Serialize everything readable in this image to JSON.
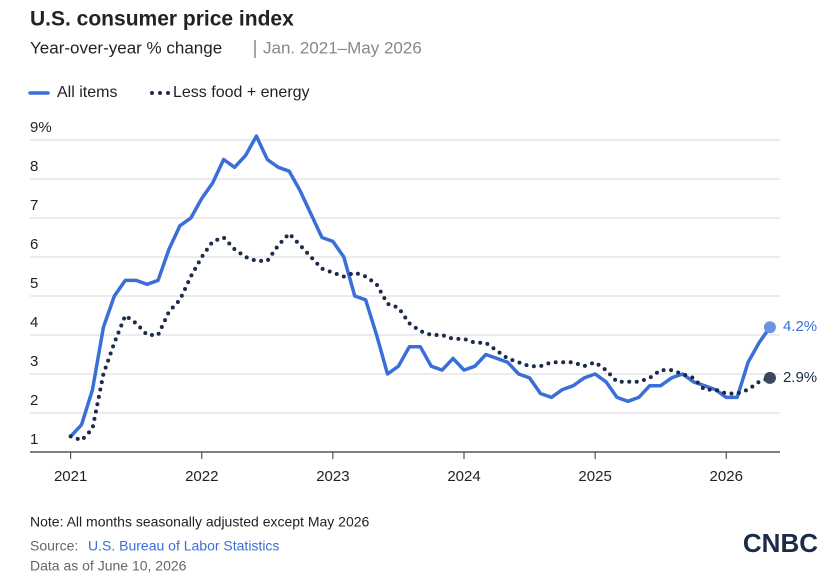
{
  "chart_data": {
    "type": "line",
    "title": "U.S. consumer price index",
    "subtitle": "Year-over-year % change",
    "subtitle_note": "Jan. 2021–May 2026",
    "x": [
      "2021-01",
      "2021-02",
      "2021-03",
      "2021-04",
      "2021-05",
      "2021-06",
      "2021-07",
      "2021-08",
      "2021-09",
      "2021-10",
      "2021-11",
      "2021-12",
      "2022-01",
      "2022-02",
      "2022-03",
      "2022-04",
      "2022-05",
      "2022-06",
      "2022-07",
      "2022-08",
      "2022-09",
      "2022-10",
      "2022-11",
      "2022-12",
      "2023-01",
      "2023-02",
      "2023-03",
      "2023-04",
      "2023-05",
      "2023-06",
      "2023-07",
      "2023-08",
      "2023-09",
      "2023-10",
      "2023-11",
      "2023-12",
      "2024-01",
      "2024-02",
      "2024-03",
      "2024-04",
      "2024-05",
      "2024-06",
      "2024-07",
      "2024-08",
      "2024-09",
      "2024-10",
      "2024-11",
      "2024-12",
      "2025-01",
      "2025-02",
      "2025-03",
      "2025-04",
      "2025-05",
      "2025-06",
      "2025-07",
      "2025-08",
      "2025-09",
      "2025-10",
      "2025-11",
      "2025-12",
      "2026-01",
      "2026-02",
      "2026-03",
      "2026-04",
      "2026-05"
    ],
    "series": [
      {
        "name": "All items",
        "color": "#3a6fd8",
        "values": [
          1.4,
          1.7,
          2.6,
          4.2,
          5.0,
          5.4,
          5.4,
          5.3,
          5.4,
          6.2,
          6.8,
          7.0,
          7.5,
          7.9,
          8.5,
          8.3,
          8.6,
          9.1,
          8.5,
          8.3,
          8.2,
          7.7,
          7.1,
          6.5,
          6.4,
          6.0,
          5.0,
          4.9,
          4.0,
          3.0,
          3.2,
          3.7,
          3.7,
          3.2,
          3.1,
          3.4,
          3.1,
          3.2,
          3.5,
          3.4,
          3.3,
          3.0,
          2.9,
          2.5,
          2.4,
          2.6,
          2.7,
          2.9,
          3.0,
          2.8,
          2.4,
          2.3,
          2.4,
          2.7,
          2.7,
          2.9,
          3.0,
          2.8,
          2.7,
          2.6,
          2.4,
          2.4,
          3.3,
          3.8,
          4.2
        ],
        "value_labels": [
          null,
          null,
          null,
          null,
          null,
          null,
          null,
          null,
          null,
          null,
          null,
          null,
          null,
          null,
          null,
          null,
          null,
          null,
          null,
          null,
          null,
          null,
          null,
          null,
          null,
          null,
          null,
          null,
          null,
          null,
          null,
          null,
          null,
          null,
          null,
          null,
          null,
          null,
          null,
          null,
          null,
          null,
          null,
          null,
          null,
          null,
          null,
          null,
          null,
          null,
          null,
          null,
          null,
          null,
          null,
          null,
          null,
          null,
          null,
          null,
          null,
          null,
          null,
          null,
          "4.2%"
        ]
      },
      {
        "name": "Less food + energy",
        "color": "#1c2b4a",
        "values": [
          1.4,
          1.3,
          1.6,
          3.0,
          3.8,
          4.5,
          4.3,
          4.0,
          4.0,
          4.6,
          4.9,
          5.5,
          6.0,
          6.4,
          6.5,
          6.2,
          6.0,
          5.9,
          5.9,
          6.3,
          6.6,
          6.3,
          6.0,
          5.7,
          5.6,
          5.5,
          5.6,
          5.5,
          5.3,
          4.8,
          4.7,
          4.3,
          4.1,
          4.0,
          4.0,
          3.9,
          3.9,
          3.8,
          3.8,
          3.6,
          3.4,
          3.3,
          3.2,
          3.2,
          3.3,
          3.3,
          3.3,
          3.2,
          3.3,
          3.1,
          2.8,
          2.8,
          2.8,
          2.9,
          3.1,
          3.1,
          3.0,
          2.9,
          2.6,
          2.6,
          2.5,
          2.5,
          2.6,
          2.8,
          2.9
        ],
        "value_labels": [
          null,
          null,
          null,
          null,
          null,
          null,
          null,
          null,
          null,
          null,
          null,
          null,
          null,
          null,
          null,
          null,
          null,
          null,
          null,
          null,
          null,
          null,
          null,
          null,
          null,
          null,
          null,
          null,
          null,
          null,
          null,
          null,
          null,
          null,
          null,
          null,
          null,
          null,
          null,
          null,
          null,
          null,
          null,
          null,
          null,
          null,
          null,
          null,
          null,
          null,
          null,
          null,
          null,
          null,
          null,
          null,
          null,
          null,
          null,
          null,
          null,
          null,
          null,
          null,
          "2.9%"
        ]
      }
    ],
    "xlim": [
      2020.69,
      2026.41
    ],
    "xticks": [
      2021,
      2022,
      2023,
      2024,
      2025,
      2026
    ],
    "ylim": [
      1,
      9
    ],
    "yticks": [
      1,
      2,
      3,
      4,
      5,
      6,
      7,
      8,
      {
        "value": 9,
        "label": "9%"
      }
    ],
    "grid": true,
    "note": "Note: All months seasonally adjusted except May 2026",
    "source_label": "Source:",
    "source": "U.S. Bureau of Labor Statistics",
    "data_date": "Data as of June 10, 2026",
    "logo": "CNBC"
  }
}
